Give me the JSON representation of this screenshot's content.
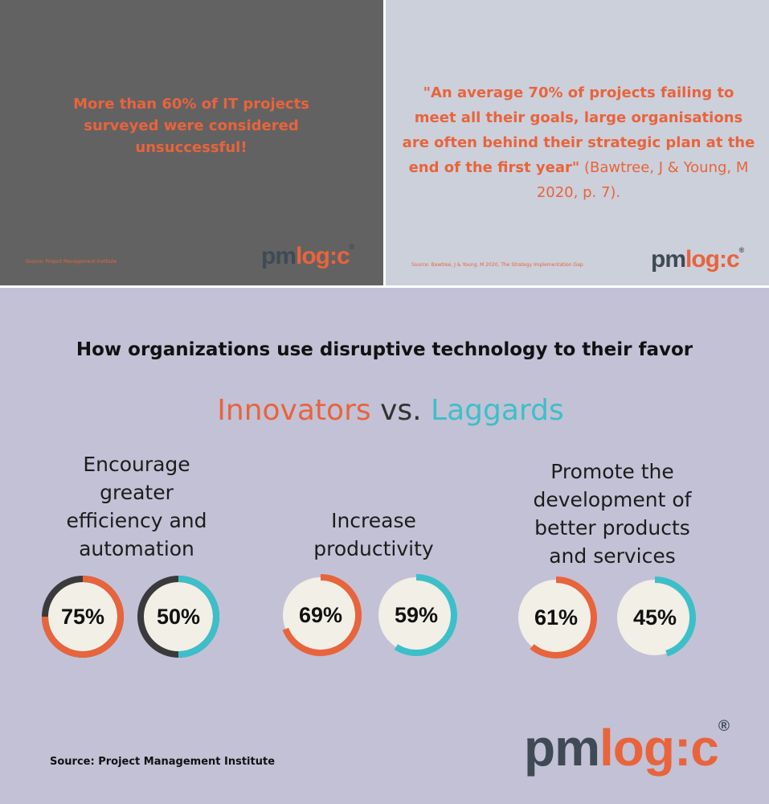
{
  "left_panel": {
    "headline": "More than 60% of IT projects surveyed were considered unsuccessful!",
    "source": "Source: Project Management Institute",
    "logo": {
      "dark": "pm",
      "accent": "log:c",
      "mark": "®"
    }
  },
  "right_panel": {
    "quote": "\"An average 70% of projects failing to meet all their goals, large organisations are often behind their strategic plan at the end of the first year\"",
    "citation": "(Bawtree, J & Young, M 2020, p. 7).",
    "source": "Source: Bawtree, J & Young, M 2020, The Strategy Implementation Gap",
    "logo": {
      "dark": "pm",
      "accent": "log:c",
      "mark": "®"
    }
  },
  "infographic": {
    "title": "How organizations use disruptive technology to their favor",
    "legend": {
      "innovators": "Innovators",
      "vs": "vs.",
      "laggards": "Laggards"
    },
    "groups": [
      {
        "heading": [
          "Encourage",
          "greater",
          "efficiency and",
          "automation"
        ],
        "innovators": {
          "value": 75,
          "label": "75%"
        },
        "laggards": {
          "value": 50,
          "label": "50%"
        }
      },
      {
        "heading": [
          "Increase",
          "productivity"
        ],
        "innovators": {
          "value": 69,
          "label": "69%"
        },
        "laggards": {
          "value": 59,
          "label": "59%"
        }
      },
      {
        "heading": [
          "Promote the",
          "development of",
          "better products",
          "and services"
        ],
        "innovators": {
          "value": 61,
          "label": "61%"
        },
        "laggards": {
          "value": 45,
          "label": "45%"
        }
      }
    ],
    "source": "Source: Project Management Institute",
    "logo": {
      "dark": "pm",
      "accent": "log:c",
      "mark": "®"
    }
  }
}
